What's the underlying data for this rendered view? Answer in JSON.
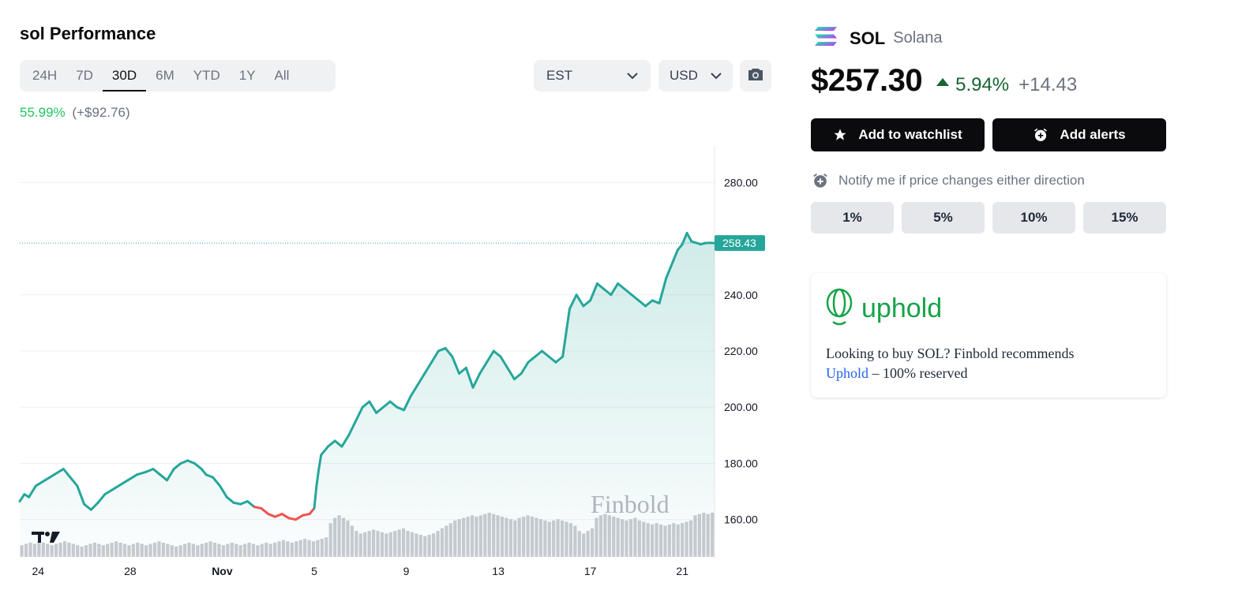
{
  "header": {
    "title": "sol Performance"
  },
  "range_tabs": [
    "24H",
    "7D",
    "30D",
    "6M",
    "YTD",
    "1Y",
    "All"
  ],
  "active_range": "30D",
  "timezone": {
    "selected": "EST"
  },
  "currency": {
    "selected": "USD"
  },
  "icons": {
    "camera": "camera-icon",
    "chevron": "chevron-down-icon",
    "star": "star-icon",
    "alarm": "alarm-clock-icon",
    "coin": "solana-logo-icon",
    "brand": "uphold-logo-icon"
  },
  "performance": {
    "percent": "55.99%",
    "absolute": "(+$92.76)"
  },
  "coin": {
    "symbol": "SOL",
    "name": "Solana"
  },
  "price": {
    "value": "$257.30",
    "change_pct": "5.94%",
    "change_abs": "+14.43"
  },
  "actions": {
    "watchlist": "Add to watchlist",
    "alerts": "Add alerts"
  },
  "notify": {
    "text": "Notify me if price changes either direction",
    "options": [
      "1%",
      "5%",
      "10%",
      "15%"
    ]
  },
  "promo": {
    "brand": "uphold",
    "text_before": "Looking to buy SOL? Finbold recommends",
    "link": "Uphold",
    "text_after": " – 100% reserved"
  },
  "colors": {
    "up_line": "#26a69a",
    "down_line": "#ef5350",
    "positive": "#22c55e",
    "price_change": "#166534",
    "brand": "#16a34a",
    "volume": "#c9cbd1"
  },
  "chart_data": {
    "type": "area",
    "watermark": "Finbold",
    "last_price_label": "258.43",
    "last_price": 258.43,
    "y_ticks": [
      "280.00",
      "240.00",
      "220.00",
      "200.00",
      "180.00",
      "160.00"
    ],
    "ylim": [
      147,
      293
    ],
    "x_ticks": [
      {
        "label": "24",
        "x": 0
      },
      {
        "label": "28",
        "x": 4
      },
      {
        "label": "Nov",
        "x": 8
      },
      {
        "label": "5",
        "x": 12
      },
      {
        "label": "9",
        "x": 16
      },
      {
        "label": "13",
        "x": 20
      },
      {
        "label": "17",
        "x": 24
      },
      {
        "label": "21",
        "x": 28
      }
    ],
    "xlim": [
      -0.8,
      29.4
    ],
    "baseline": 165.5,
    "series": [
      {
        "x": [
          -0.8,
          -0.6,
          -0.4,
          -0.1,
          0.3,
          0.7,
          1.1,
          1.4,
          1.7,
          2.0,
          2.3,
          2.6,
          2.9,
          3.2,
          3.5,
          3.9,
          4.3,
          4.7,
          5.0,
          5.3,
          5.6,
          5.9,
          6.2,
          6.5,
          6.8,
          7.1,
          7.3,
          7.6,
          7.9,
          8.2,
          8.5,
          8.8,
          9.1,
          9.4,
          9.7,
          10.0,
          10.3,
          10.6,
          10.9,
          11.2,
          11.5,
          11.8,
          12.0,
          12.1,
          12.2,
          12.3,
          12.6,
          12.9,
          13.2,
          13.5,
          13.8,
          14.1,
          14.4,
          14.7,
          15.0,
          15.3,
          15.6,
          15.9,
          16.2,
          16.5,
          16.8,
          17.1,
          17.4,
          17.7,
          18.0,
          18.3,
          18.6,
          18.9,
          19.2,
          19.5,
          19.8,
          20.1,
          20.4,
          20.7,
          21.0,
          21.3,
          21.6,
          21.9,
          22.2,
          22.5,
          22.8,
          23.1,
          23.4,
          23.7,
          24.0,
          24.3,
          24.6,
          24.9,
          25.2,
          25.5,
          25.8,
          26.1,
          26.4,
          26.7,
          27.0,
          27.3,
          27.6,
          27.8,
          28.0,
          28.2,
          28.4,
          28.6,
          28.8,
          29.0,
          29.2,
          29.4
        ],
        "y": [
          166.5,
          169.0,
          168.0,
          172.0,
          174.0,
          176.0,
          178.0,
          175.0,
          172.0,
          165.5,
          163.5,
          166.0,
          169.0,
          170.5,
          172.0,
          174.0,
          176.0,
          177.0,
          178.0,
          176.0,
          174.0,
          178.0,
          180.0,
          181.0,
          180.0,
          178.0,
          176.0,
          175.0,
          172.0,
          168.0,
          166.0,
          165.5,
          166.5,
          164.5,
          164.0,
          162.0,
          161.0,
          162.0,
          160.5,
          160.0,
          161.5,
          162.0,
          164.0,
          172.0,
          178.0,
          183.0,
          186.0,
          188.0,
          186.0,
          190.0,
          195.0,
          200.0,
          202.0,
          198.0,
          200.0,
          202.0,
          200.0,
          199.0,
          204.0,
          208.0,
          212.0,
          216.0,
          220.0,
          221.0,
          218.0,
          212.0,
          214.0,
          207.0,
          212.0,
          216.0,
          220.0,
          218.0,
          214.0,
          210.0,
          212.0,
          216.0,
          218.0,
          220.0,
          218.0,
          216.0,
          218.0,
          235.0,
          240.0,
          236.0,
          238.0,
          244.0,
          242.0,
          240.0,
          244.0,
          242.0,
          240.0,
          238.0,
          236.0,
          238.0,
          237.0,
          246.0,
          252.0,
          256.0,
          258.0,
          262.0,
          259.0,
          258.5,
          258.0,
          258.43,
          258.5,
          258.43
        ]
      }
    ],
    "volume": [
      0.45,
      0.5,
      0.55,
      0.5,
      0.6,
      0.55,
      0.5,
      0.45,
      0.5,
      0.55,
      0.6,
      0.55,
      0.5,
      0.45,
      0.4,
      0.45,
      0.5,
      0.55,
      0.5,
      0.45,
      0.5,
      0.55,
      0.6,
      0.55,
      0.5,
      0.45,
      0.5,
      0.55,
      0.5,
      0.45,
      0.5,
      0.55,
      0.6,
      0.55,
      0.5,
      0.45,
      0.4,
      0.45,
      0.5,
      0.55,
      0.5,
      0.45,
      0.5,
      0.55,
      0.6,
      0.55,
      0.5,
      0.45,
      0.5,
      0.55,
      0.5,
      0.45,
      0.5,
      0.55,
      0.5,
      0.45,
      0.5,
      0.55,
      0.5,
      0.55,
      0.6,
      0.65,
      0.6,
      0.55,
      0.6,
      0.65,
      0.7,
      0.65,
      0.6,
      0.65,
      0.7,
      0.75,
      1.3,
      1.5,
      1.6,
      1.5,
      1.4,
      1.2,
      1.0,
      0.9,
      0.95,
      1.0,
      1.05,
      1.0,
      0.95,
      0.9,
      0.95,
      1.0,
      1.05,
      1.1,
      1.0,
      0.95,
      0.9,
      0.85,
      0.8,
      0.85,
      0.9,
      1.0,
      1.1,
      1.2,
      1.3,
      1.4,
      1.45,
      1.5,
      1.55,
      1.6,
      1.55,
      1.6,
      1.65,
      1.7,
      1.65,
      1.6,
      1.55,
      1.5,
      1.45,
      1.4,
      1.5,
      1.55,
      1.6,
      1.55,
      1.5,
      1.45,
      1.4,
      1.35,
      1.4,
      1.45,
      1.4,
      1.35,
      1.3,
      1.2,
      1.0,
      0.9,
      1.0,
      1.1,
      1.5,
      1.6,
      1.65,
      1.6,
      1.55,
      1.5,
      1.45,
      1.4,
      1.45,
      1.5,
      1.4,
      1.35,
      1.3,
      1.25,
      1.3,
      1.25,
      1.2,
      1.25,
      1.3,
      1.25,
      1.3,
      1.35,
      1.4,
      1.6,
      1.65,
      1.7,
      1.65,
      1.7
    ]
  }
}
